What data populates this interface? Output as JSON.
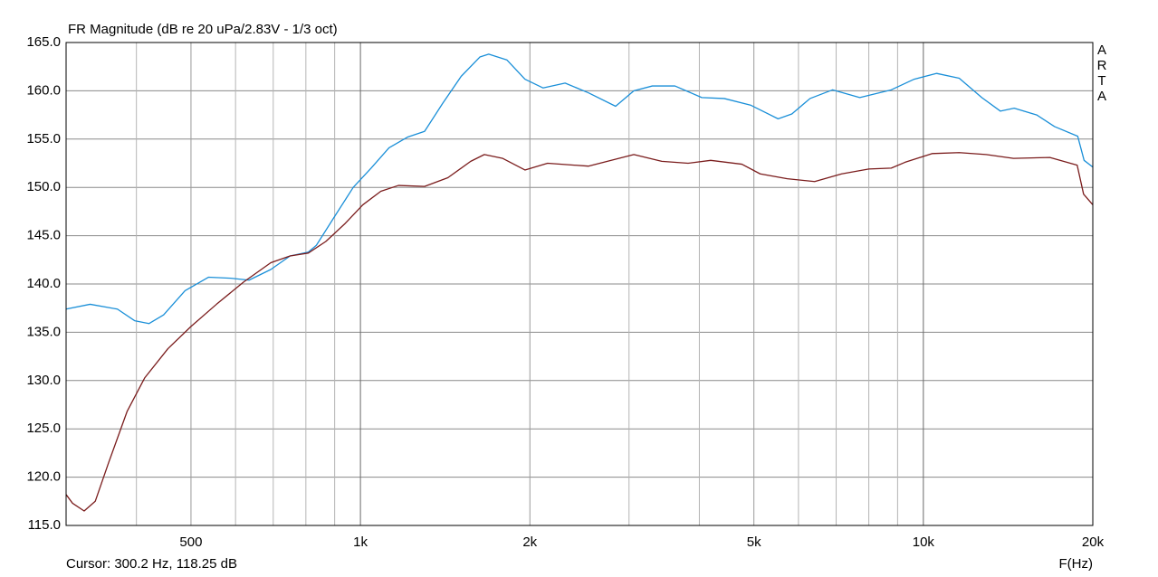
{
  "chart_data": {
    "type": "line",
    "title": "FR Magnitude (dB re 20 uPa/2.83V - 1/3 oct)",
    "side_label": [
      "A",
      "R",
      "T",
      "A"
    ],
    "cursor": "Cursor: 300.2 Hz, 118.25 dB",
    "x_label": "F(Hz)",
    "log_x": true,
    "grid": true,
    "xlim": [
      300,
      20000
    ],
    "xticks": [
      {
        "value": 500,
        "label": "500"
      },
      {
        "value": 1000,
        "label": "1k"
      },
      {
        "value": 2000,
        "label": "2k"
      },
      {
        "value": 5000,
        "label": "5k"
      },
      {
        "value": 10000,
        "label": "10k"
      },
      {
        "value": 20000,
        "label": "20k"
      }
    ],
    "x_minor_grid": [
      400,
      600,
      700,
      800,
      900,
      3000,
      4000,
      6000,
      7000,
      8000,
      9000
    ],
    "ylim": [
      115,
      165
    ],
    "yticks": [
      {
        "value": 115,
        "label": "115.0"
      },
      {
        "value": 120,
        "label": "120.0"
      },
      {
        "value": 125,
        "label": "125.0"
      },
      {
        "value": 130,
        "label": "130.0"
      },
      {
        "value": 135,
        "label": "135.0"
      },
      {
        "value": 140,
        "label": "140.0"
      },
      {
        "value": 145,
        "label": "145.0"
      },
      {
        "value": 150,
        "label": "150.0"
      },
      {
        "value": 155,
        "label": "155.0"
      },
      {
        "value": 160,
        "label": "160.0"
      },
      {
        "value": 165,
        "label": "165.0"
      }
    ],
    "series": [
      {
        "color": "#1a8fd8",
        "x": [
          300,
          331,
          370,
          397,
          421,
          447,
          488,
          537,
          588,
          634,
          693,
          750,
          808,
          835,
          900,
          971,
          1045,
          1124,
          1212,
          1300,
          1400,
          1510,
          1630,
          1690,
          1820,
          1960,
          2110,
          2310,
          2540,
          2840,
          3060,
          3300,
          3620,
          4040,
          4430,
          4940,
          5520,
          5840,
          6290,
          6900,
          7710,
          8770,
          9630,
          10560,
          11580,
          12700,
          13700,
          14500,
          15900,
          17100,
          18800,
          19300,
          20000
        ],
        "values": [
          137.4,
          137.9,
          137.4,
          136.2,
          135.9,
          136.8,
          139.3,
          140.7,
          140.6,
          140.4,
          141.5,
          142.9,
          143.3,
          144.0,
          147.0,
          150.0,
          152.0,
          154.1,
          155.2,
          155.8,
          158.7,
          161.5,
          163.5,
          163.8,
          163.2,
          161.2,
          160.3,
          160.8,
          159.8,
          158.4,
          160.0,
          160.5,
          160.5,
          159.3,
          159.2,
          158.5,
          157.1,
          157.6,
          159.2,
          160.1,
          159.3,
          160.1,
          161.2,
          161.8,
          161.3,
          159.3,
          157.9,
          158.2,
          157.5,
          156.3,
          155.3,
          152.8,
          152.1
        ]
      },
      {
        "color": "#7a1c1c",
        "x": [
          300,
          308,
          323,
          338,
          357,
          385,
          414,
          455,
          500,
          555,
          620,
          693,
          750,
          808,
          868,
          937,
          1010,
          1087,
          1168,
          1300,
          1430,
          1570,
          1660,
          1790,
          1960,
          2150,
          2540,
          3060,
          3430,
          3820,
          4190,
          4760,
          5130,
          5730,
          6410,
          7160,
          8000,
          8770,
          9280,
          10360,
          11580,
          12930,
          14460,
          16780,
          18760,
          19260,
          20000
        ],
        "values": [
          118.2,
          117.3,
          116.5,
          117.5,
          121.5,
          126.8,
          130.3,
          133.3,
          135.6,
          137.9,
          140.2,
          142.2,
          142.9,
          143.2,
          144.4,
          146.2,
          148.2,
          149.6,
          150.2,
          150.1,
          151.0,
          152.7,
          153.4,
          153.0,
          151.8,
          152.5,
          152.2,
          153.4,
          152.7,
          152.5,
          152.8,
          152.4,
          151.4,
          150.9,
          150.6,
          151.4,
          151.9,
          152.0,
          152.6,
          153.5,
          153.6,
          153.4,
          153.0,
          153.1,
          152.3,
          149.3,
          148.2
        ]
      }
    ]
  }
}
